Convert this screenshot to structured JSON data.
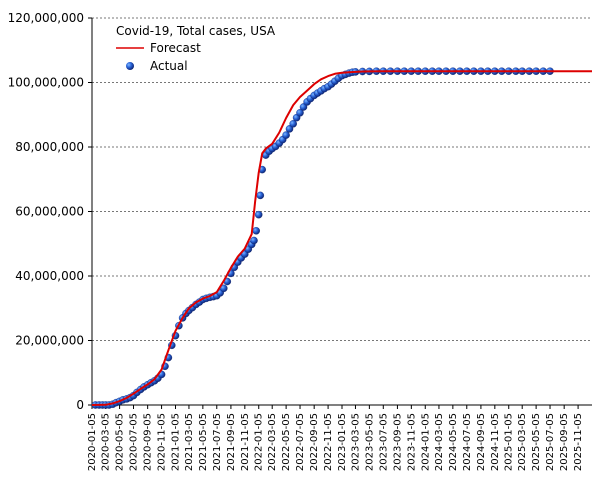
{
  "chart_data": {
    "type": "line",
    "title": "Covid-19, Total cases, USA",
    "xlabel": "",
    "ylabel": "",
    "ylim": [
      0,
      120000000
    ],
    "xlim": [
      "2020-01-05",
      "2026-01-05"
    ],
    "grid": "horizontal",
    "legend_position": "top-left",
    "y_ticks": [
      0,
      20000000,
      40000000,
      60000000,
      80000000,
      100000000,
      120000000
    ],
    "y_tick_labels": [
      "0",
      "20,000,000",
      "40,000,000",
      "60,000,000",
      "80,000,000",
      "100,000,000",
      "120,000,000"
    ],
    "x_tick_labels": [
      "2020-01-05",
      "2020-03-05",
      "2020-05-05",
      "2020-07-05",
      "2020-09-05",
      "2020-11-05",
      "2021-01-05",
      "2021-03-05",
      "2021-05-05",
      "2021-07-05",
      "2021-09-05",
      "2021-11-05",
      "2022-01-05",
      "2022-03-05",
      "2022-05-05",
      "2022-07-05",
      "2022-09-05",
      "2022-11-05",
      "2023-01-05",
      "2023-03-05",
      "2023-05-05",
      "2023-07-05",
      "2023-09-05",
      "2023-11-05",
      "2024-01-05",
      "2024-03-05",
      "2024-05-05",
      "2024-07-05",
      "2024-09-05",
      "2024-11-05",
      "2025-01-05",
      "2025-03-05",
      "2025-05-05",
      "2025-07-05",
      "2025-09-05",
      "2025-11-05"
    ],
    "series": [
      {
        "name": "Forecast",
        "style": "line",
        "color": "#dd0000",
        "x": [
          "2020-01-05",
          "2020-03-05",
          "2020-04-05",
          "2020-05-05",
          "2020-06-05",
          "2020-07-05",
          "2020-08-05",
          "2020-09-05",
          "2020-10-05",
          "2020-11-05",
          "2020-12-05",
          "2021-01-05",
          "2021-02-05",
          "2021-03-05",
          "2021-04-05",
          "2021-05-05",
          "2021-06-05",
          "2021-07-05",
          "2021-08-05",
          "2021-09-05",
          "2021-10-05",
          "2021-11-05",
          "2021-12-05",
          "2021-12-20",
          "2022-01-05",
          "2022-01-20",
          "2022-02-05",
          "2022-03-05",
          "2022-04-05",
          "2022-05-05",
          "2022-06-05",
          "2022-07-05",
          "2022-08-05",
          "2022-09-05",
          "2022-10-05",
          "2022-11-05",
          "2022-12-05",
          "2023-01-05",
          "2023-02-05",
          "2023-03-05",
          "2023-04-05",
          "2023-05-05",
          "2023-07-05",
          "2023-09-05",
          "2024-01-05",
          "2025-01-05",
          "2026-01-05"
        ],
        "values": [
          0,
          50000,
          500000,
          1200000,
          2200000,
          3500000,
          5000000,
          6400000,
          8000000,
          11000000,
          17000000,
          23000000,
          27000000,
          30000000,
          31800000,
          33000000,
          33800000,
          35000000,
          38500000,
          42500000,
          46000000,
          48500000,
          53000000,
          63000000,
          72000000,
          78000000,
          79500000,
          81000000,
          84500000,
          89000000,
          93000000,
          95500000,
          97500000,
          99500000,
          101000000,
          102000000,
          102700000,
          103000000,
          103200000,
          103300000,
          103400000,
          103450000,
          103500000,
          103500000,
          103500000,
          103500000,
          103500000
        ]
      },
      {
        "name": "Actual",
        "style": "markers",
        "color": "#1f4fc0",
        "x": [
          "2020-01-20",
          "2020-02-05",
          "2020-02-20",
          "2020-03-05",
          "2020-03-20",
          "2020-04-05",
          "2020-04-20",
          "2020-05-05",
          "2020-05-20",
          "2020-06-05",
          "2020-06-20",
          "2020-07-05",
          "2020-07-20",
          "2020-08-05",
          "2020-08-20",
          "2020-09-05",
          "2020-09-20",
          "2020-10-05",
          "2020-10-20",
          "2020-11-05",
          "2020-11-20",
          "2020-12-05",
          "2020-12-20",
          "2021-01-05",
          "2021-01-20",
          "2021-02-05",
          "2021-02-20",
          "2021-03-05",
          "2021-03-20",
          "2021-04-05",
          "2021-04-20",
          "2021-05-05",
          "2021-05-20",
          "2021-06-05",
          "2021-06-20",
          "2021-07-05",
          "2021-07-20",
          "2021-08-05",
          "2021-08-20",
          "2021-09-05",
          "2021-09-20",
          "2021-10-05",
          "2021-10-20",
          "2021-11-05",
          "2021-11-20",
          "2021-12-05",
          "2021-12-15",
          "2021-12-25",
          "2022-01-05",
          "2022-01-12",
          "2022-01-20",
          "2022-02-05",
          "2022-02-20",
          "2022-03-05",
          "2022-03-20",
          "2022-04-05",
          "2022-04-20",
          "2022-05-05",
          "2022-05-20",
          "2022-06-05",
          "2022-06-20",
          "2022-07-05",
          "2022-07-20",
          "2022-08-05",
          "2022-08-20",
          "2022-09-05",
          "2022-09-20",
          "2022-10-05",
          "2022-10-20",
          "2022-11-05",
          "2022-11-20",
          "2022-12-05",
          "2022-12-20",
          "2023-01-05",
          "2023-01-20",
          "2023-02-05",
          "2023-02-20",
          "2023-03-05",
          "2023-04-05",
          "2023-05-05",
          "2023-06-05",
          "2023-07-05",
          "2023-08-05",
          "2023-09-05",
          "2023-10-05",
          "2023-11-05",
          "2023-12-05",
          "2024-01-05",
          "2024-02-05",
          "2024-03-05",
          "2024-04-05",
          "2024-05-05",
          "2024-06-05",
          "2024-07-05",
          "2024-08-05",
          "2024-09-05",
          "2024-10-05",
          "2024-11-05",
          "2024-12-05",
          "2025-01-05",
          "2025-02-05",
          "2025-03-05",
          "2025-04-05",
          "2025-05-05",
          "2025-06-05",
          "2025-07-05"
        ],
        "values": [
          0,
          10,
          60,
          100,
          15000,
          250000,
          750000,
          1150000,
          1600000,
          1900000,
          2300000,
          2900000,
          3900000,
          4800000,
          5600000,
          6300000,
          6900000,
          7500000,
          8300000,
          9500000,
          12000000,
          14700000,
          18500000,
          21500000,
          24600000,
          27000000,
          28400000,
          29300000,
          30200000,
          31200000,
          31900000,
          32700000,
          33100000,
          33400000,
          33600000,
          33900000,
          34800000,
          36200000,
          38300000,
          40800000,
          42700000,
          44300000,
          45600000,
          46800000,
          48300000,
          49800000,
          51000000,
          54000000,
          59000000,
          65000000,
          73000000,
          77500000,
          78700000,
          79500000,
          80200000,
          81200000,
          82300000,
          83700000,
          85600000,
          87200000,
          89100000,
          90600000,
          92400000,
          94000000,
          95000000,
          96000000,
          96700000,
          97400000,
          98100000,
          98700000,
          99500000,
          100400000,
          101300000,
          102100000,
          102500000,
          102900000,
          103200000,
          103300000,
          103400000,
          103450000,
          103500000,
          103500000,
          103500000,
          103500000,
          103500000,
          103500000,
          103500000,
          103500000,
          103500000,
          103500000,
          103500000,
          103500000,
          103500000,
          103500000,
          103500000,
          103500000,
          103500000,
          103500000,
          103500000,
          103500000,
          103500000,
          103500000,
          103500000,
          103500000,
          103500000,
          103500000
        ]
      }
    ]
  }
}
